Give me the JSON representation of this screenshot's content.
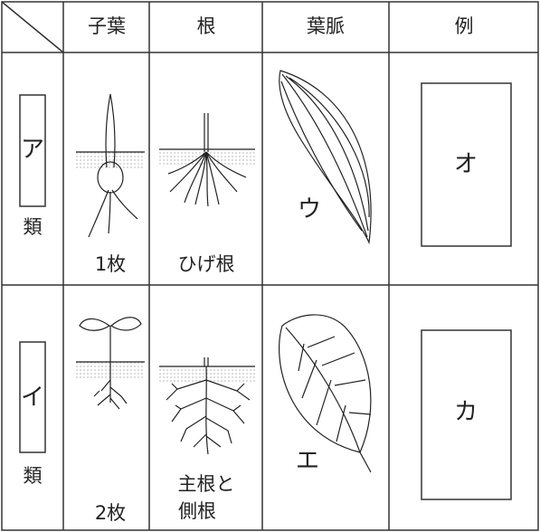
{
  "header": {
    "columns": [
      "子葉",
      "根",
      "葉脈",
      "例"
    ]
  },
  "rows": [
    {
      "group": "ア",
      "suffix": "類",
      "cotyledon": "1枚",
      "root": [
        "ひげ根"
      ],
      "vein": "ウ",
      "example": "オ"
    },
    {
      "group": "イ",
      "suffix": "類",
      "cotyledon": "2枚",
      "root": [
        "主根と",
        "側根"
      ],
      "vein": "エ",
      "example": "カ"
    }
  ]
}
